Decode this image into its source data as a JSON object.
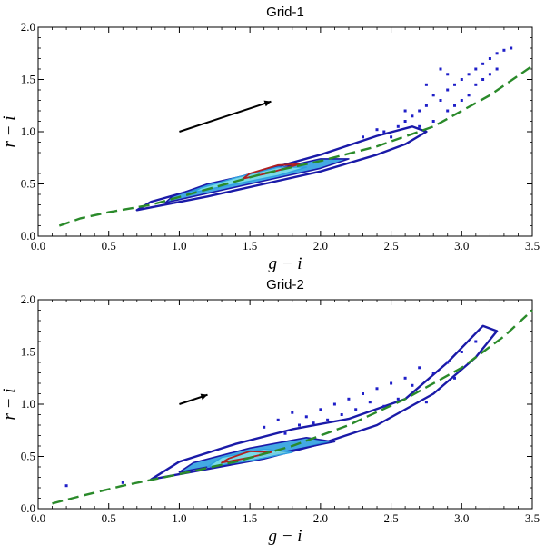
{
  "chart_data": [
    {
      "type": "scatter",
      "title": "Grid-1",
      "xlabel": "g − i",
      "ylabel": "r − i",
      "xlim": [
        0.0,
        3.5
      ],
      "ylim": [
        0.0,
        2.0
      ],
      "xticks": [
        "0.0",
        "0.5",
        "1.0",
        "1.5",
        "2.0",
        "2.5",
        "3.0",
        "3.5"
      ],
      "yticks": [
        "0.0",
        "0.5",
        "1.0",
        "1.5",
        "2.0"
      ],
      "colors": {
        "points": "#1f1fc8",
        "contour_outer": "#1a1aa8",
        "contour_mid": "#2fa0e0",
        "contour_inner": "#7fe0e8",
        "core": "#b02020",
        "reference": "#2a8a2a",
        "arrow": "#000000"
      },
      "reference_line": [
        [
          0.15,
          0.1
        ],
        [
          0.3,
          0.17
        ],
        [
          0.5,
          0.23
        ],
        [
          0.8,
          0.3
        ],
        [
          1.2,
          0.45
        ],
        [
          1.6,
          0.6
        ],
        [
          2.0,
          0.72
        ],
        [
          2.4,
          0.86
        ],
        [
          2.8,
          1.05
        ],
        [
          3.2,
          1.35
        ],
        [
          3.5,
          1.63
        ]
      ],
      "arrow": {
        "from": [
          1.0,
          1.0
        ],
        "to": [
          1.65,
          1.29
        ]
      },
      "contours": [
        {
          "level": "outer",
          "points": [
            [
              0.7,
              0.25
            ],
            [
              1.2,
              0.38
            ],
            [
              1.6,
              0.5
            ],
            [
              2.0,
              0.62
            ],
            [
              2.4,
              0.78
            ],
            [
              2.6,
              0.88
            ],
            [
              2.75,
              1.0
            ],
            [
              2.65,
              1.05
            ],
            [
              2.4,
              0.96
            ],
            [
              2.0,
              0.78
            ],
            [
              1.6,
              0.63
            ],
            [
              1.2,
              0.48
            ],
            [
              0.8,
              0.33
            ]
          ]
        },
        {
          "level": "mid",
          "points": [
            [
              0.9,
              0.32
            ],
            [
              1.3,
              0.44
            ],
            [
              1.7,
              0.56
            ],
            [
              2.0,
              0.65
            ],
            [
              2.2,
              0.74
            ],
            [
              2.0,
              0.74
            ],
            [
              1.6,
              0.62
            ],
            [
              1.2,
              0.5
            ],
            [
              0.95,
              0.38
            ]
          ]
        },
        {
          "level": "inner",
          "points": [
            [
              1.1,
              0.42
            ],
            [
              1.4,
              0.5
            ],
            [
              1.7,
              0.58
            ],
            [
              1.9,
              0.66
            ],
            [
              1.7,
              0.66
            ],
            [
              1.4,
              0.56
            ],
            [
              1.15,
              0.46
            ]
          ]
        },
        {
          "level": "core",
          "points": [
            [
              1.45,
              0.55
            ],
            [
              1.65,
              0.61
            ],
            [
              1.85,
              0.69
            ],
            [
              1.7,
              0.68
            ],
            [
              1.5,
              0.6
            ]
          ]
        }
      ],
      "outliers": [
        [
          2.3,
          0.95
        ],
        [
          2.45,
          1.0
        ],
        [
          2.55,
          1.05
        ],
        [
          2.6,
          1.1
        ],
        [
          2.65,
          1.15
        ],
        [
          2.7,
          1.2
        ],
        [
          2.75,
          1.25
        ],
        [
          2.8,
          1.35
        ],
        [
          2.85,
          1.3
        ],
        [
          2.9,
          1.4
        ],
        [
          2.95,
          1.45
        ],
        [
          3.0,
          1.5
        ],
        [
          3.05,
          1.55
        ],
        [
          3.1,
          1.6
        ],
        [
          3.15,
          1.65
        ],
        [
          3.2,
          1.7
        ],
        [
          3.25,
          1.75
        ],
        [
          3.3,
          1.78
        ],
        [
          2.7,
          1.05
        ],
        [
          2.8,
          1.1
        ],
        [
          2.9,
          1.2
        ],
        [
          3.0,
          1.3
        ],
        [
          3.1,
          1.45
        ],
        [
          3.2,
          1.55
        ],
        [
          3.25,
          1.6
        ],
        [
          2.6,
          1.2
        ],
        [
          2.9,
          1.55
        ],
        [
          3.05,
          1.35
        ],
        [
          3.15,
          1.5
        ],
        [
          2.75,
          1.45
        ],
        [
          2.85,
          1.6
        ],
        [
          3.35,
          1.8
        ],
        [
          2.5,
          0.95
        ],
        [
          2.4,
          1.02
        ],
        [
          2.95,
          1.25
        ]
      ]
    },
    {
      "type": "scatter",
      "title": "Grid-2",
      "xlabel": "g − i",
      "ylabel": "r − i",
      "xlim": [
        0.0,
        3.5
      ],
      "ylim": [
        0.0,
        2.0
      ],
      "xticks": [
        "0.0",
        "0.5",
        "1.0",
        "1.5",
        "2.0",
        "2.5",
        "3.0",
        "3.5"
      ],
      "yticks": [
        "0.0",
        "0.5",
        "1.0",
        "1.5",
        "2.0"
      ],
      "colors": {
        "points": "#1f1fc8",
        "contour_outer": "#1a1aa8",
        "contour_mid": "#2fa0e0",
        "contour_inner": "#7fe0e8",
        "core": "#b02020",
        "reference": "#2a8a2a",
        "arrow": "#000000"
      },
      "reference_line": [
        [
          0.1,
          0.05
        ],
        [
          0.3,
          0.12
        ],
        [
          0.6,
          0.22
        ],
        [
          1.0,
          0.33
        ],
        [
          1.4,
          0.45
        ],
        [
          1.8,
          0.6
        ],
        [
          2.2,
          0.8
        ],
        [
          2.6,
          1.05
        ],
        [
          3.0,
          1.35
        ],
        [
          3.3,
          1.65
        ],
        [
          3.5,
          1.9
        ]
      ],
      "arrow": {
        "from": [
          1.0,
          1.0
        ],
        "to": [
          1.2,
          1.09
        ]
      },
      "contours": [
        {
          "level": "outer",
          "points": [
            [
              0.8,
              0.28
            ],
            [
              1.2,
              0.38
            ],
            [
              1.6,
              0.48
            ],
            [
              2.0,
              0.62
            ],
            [
              2.4,
              0.8
            ],
            [
              2.8,
              1.1
            ],
            [
              3.1,
              1.45
            ],
            [
              3.25,
              1.7
            ],
            [
              3.15,
              1.75
            ],
            [
              2.9,
              1.4
            ],
            [
              2.6,
              1.05
            ],
            [
              2.2,
              0.86
            ],
            [
              1.8,
              0.76
            ],
            [
              1.4,
              0.62
            ],
            [
              1.0,
              0.45
            ]
          ]
        },
        {
          "level": "mid",
          "points": [
            [
              1.0,
              0.35
            ],
            [
              1.4,
              0.45
            ],
            [
              1.8,
              0.56
            ],
            [
              2.1,
              0.64
            ],
            [
              1.9,
              0.68
            ],
            [
              1.5,
              0.58
            ],
            [
              1.1,
              0.44
            ]
          ]
        },
        {
          "level": "inner",
          "points": [
            [
              1.2,
              0.4
            ],
            [
              1.5,
              0.46
            ],
            [
              1.8,
              0.54
            ],
            [
              1.6,
              0.57
            ],
            [
              1.3,
              0.49
            ]
          ]
        },
        {
          "level": "core",
          "points": [
            [
              1.3,
              0.44
            ],
            [
              1.5,
              0.49
            ],
            [
              1.65,
              0.54
            ],
            [
              1.5,
              0.55
            ],
            [
              1.35,
              0.48
            ]
          ]
        }
      ],
      "outliers": [
        [
          1.7,
          0.85
        ],
        [
          1.8,
          0.92
        ],
        [
          1.9,
          0.88
        ],
        [
          2.0,
          0.95
        ],
        [
          2.1,
          1.0
        ],
        [
          2.2,
          1.05
        ],
        [
          2.3,
          1.1
        ],
        [
          2.4,
          1.15
        ],
        [
          2.5,
          1.2
        ],
        [
          2.6,
          1.25
        ],
        [
          2.7,
          1.35
        ],
        [
          2.8,
          1.3
        ],
        [
          2.9,
          1.4
        ],
        [
          3.0,
          1.5
        ],
        [
          3.1,
          1.6
        ],
        [
          2.35,
          1.02
        ],
        [
          2.15,
          0.9
        ],
        [
          2.45,
          0.98
        ],
        [
          1.95,
          0.82
        ],
        [
          1.85,
          0.8
        ],
        [
          2.55,
          1.05
        ],
        [
          0.2,
          0.22
        ],
        [
          0.6,
          0.25
        ],
        [
          2.75,
          1.02
        ],
        [
          1.6,
          0.78
        ],
        [
          2.25,
          0.95
        ],
        [
          2.65,
          1.18
        ],
        [
          2.95,
          1.25
        ],
        [
          1.75,
          0.72
        ],
        [
          2.05,
          0.85
        ]
      ]
    }
  ]
}
